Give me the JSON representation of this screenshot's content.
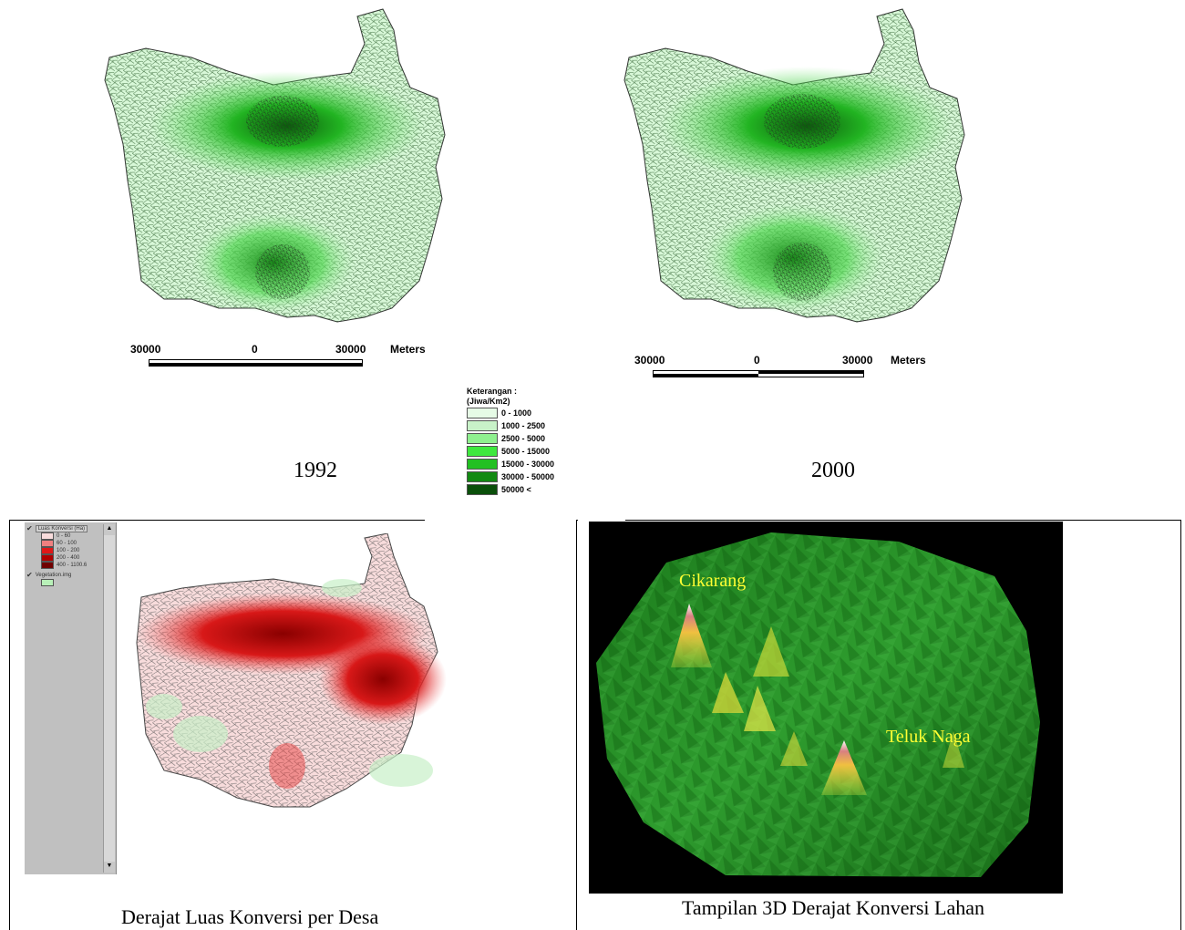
{
  "maps": {
    "left": {
      "year": "1992",
      "scale": {
        "left": "30000",
        "mid": "0",
        "right": "30000",
        "unit": "Meters"
      }
    },
    "right": {
      "year": "2000",
      "scale": {
        "left": "30000",
        "mid": "0",
        "right": "30000",
        "unit": "Meters"
      }
    }
  },
  "legend": {
    "title1": "Keterangan :",
    "title2": "(Jiwa/Km2)",
    "items": [
      {
        "label": "0 - 1000",
        "color": "#e6fbe6"
      },
      {
        "label": "1000 - 2500",
        "color": "#c8f2c8"
      },
      {
        "label": "2500 - 5000",
        "color": "#8ff08f"
      },
      {
        "label": "5000 - 15000",
        "color": "#3ee83e"
      },
      {
        "label": "15000 - 30000",
        "color": "#22c022"
      },
      {
        "label": "30000 - 50000",
        "color": "#128a12"
      },
      {
        "label": "50000 <",
        "color": "#0a4f0a"
      }
    ]
  },
  "bottom_left": {
    "caption": "Derajat Luas Konversi per Desa",
    "legend_title": "Luas Konversi (Ha)",
    "legend_items": [
      {
        "label": "0 - 60",
        "color": "#f8dcdc"
      },
      {
        "label": "60 - 100",
        "color": "#f08080"
      },
      {
        "label": "100 - 200",
        "color": "#e01818"
      },
      {
        "label": "200 - 400",
        "color": "#b00000"
      },
      {
        "label": "400 - 1100.6",
        "color": "#700000"
      }
    ],
    "legend_layer2": "Vegetation.img",
    "legend_layer2_color": "#b8f0b8"
  },
  "bottom_right": {
    "caption": "Tampilan 3D Derajat Konversi Lahan",
    "label_a": "Cikarang",
    "label_b": "Teluk Naga"
  }
}
